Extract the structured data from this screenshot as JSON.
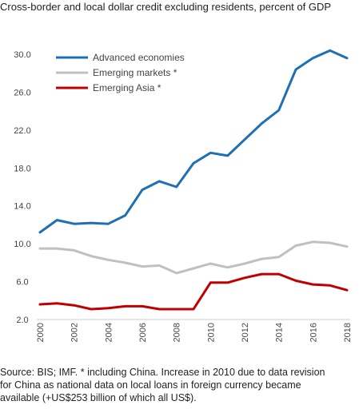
{
  "title": "Cross-border and local dollar credit excluding residents, percent of GDP",
  "source_lines": [
    "Source: BIS; IMF. * including China. Increase in 2010 due to data revision",
    "for China as national data on local loans in foreign currency became",
    "available (+US$253 billion of which all US$)."
  ],
  "chart_data": {
    "type": "line",
    "x": [
      2000,
      2001,
      2002,
      2003,
      2004,
      2005,
      2006,
      2007,
      2008,
      2009,
      2010,
      2011,
      2012,
      2013,
      2014,
      2015,
      2016,
      2017,
      2018
    ],
    "xlabel": "",
    "ylabel": "",
    "ylim": [
      2.0,
      30.0
    ],
    "yticks": [
      "2.0",
      "6.0",
      "10.0",
      "14.0",
      "18.0",
      "22.0",
      "26.0",
      "30.0"
    ],
    "xticks": [
      "2000",
      "2002",
      "2004",
      "2006",
      "2008",
      "2010",
      "2012",
      "2014",
      "2016",
      "2018"
    ],
    "legend_position": "top-left",
    "grid": false,
    "series": [
      {
        "name": "Advanced economies",
        "color": "#1f6fb5",
        "values": [
          11.2,
          12.5,
          12.1,
          12.2,
          12.1,
          13.0,
          15.7,
          16.6,
          16.0,
          18.5,
          19.6,
          19.3,
          21.0,
          22.7,
          24.1,
          28.4,
          29.6,
          30.4,
          29.6
        ]
      },
      {
        "name": "Emerging markets *",
        "color": "#c0c0c0",
        "values": [
          9.5,
          9.5,
          9.3,
          8.7,
          8.3,
          8.0,
          7.6,
          7.7,
          6.9,
          7.4,
          7.9,
          7.5,
          7.9,
          8.4,
          8.6,
          9.8,
          10.2,
          10.1,
          9.7
        ]
      },
      {
        "name": "Emerging Asia *",
        "color": "#c00000",
        "values": [
          3.6,
          3.7,
          3.5,
          3.1,
          3.2,
          3.4,
          3.4,
          3.1,
          3.1,
          3.1,
          5.9,
          5.9,
          6.4,
          6.8,
          6.8,
          6.1,
          5.7,
          5.6,
          5.1
        ]
      }
    ]
  }
}
